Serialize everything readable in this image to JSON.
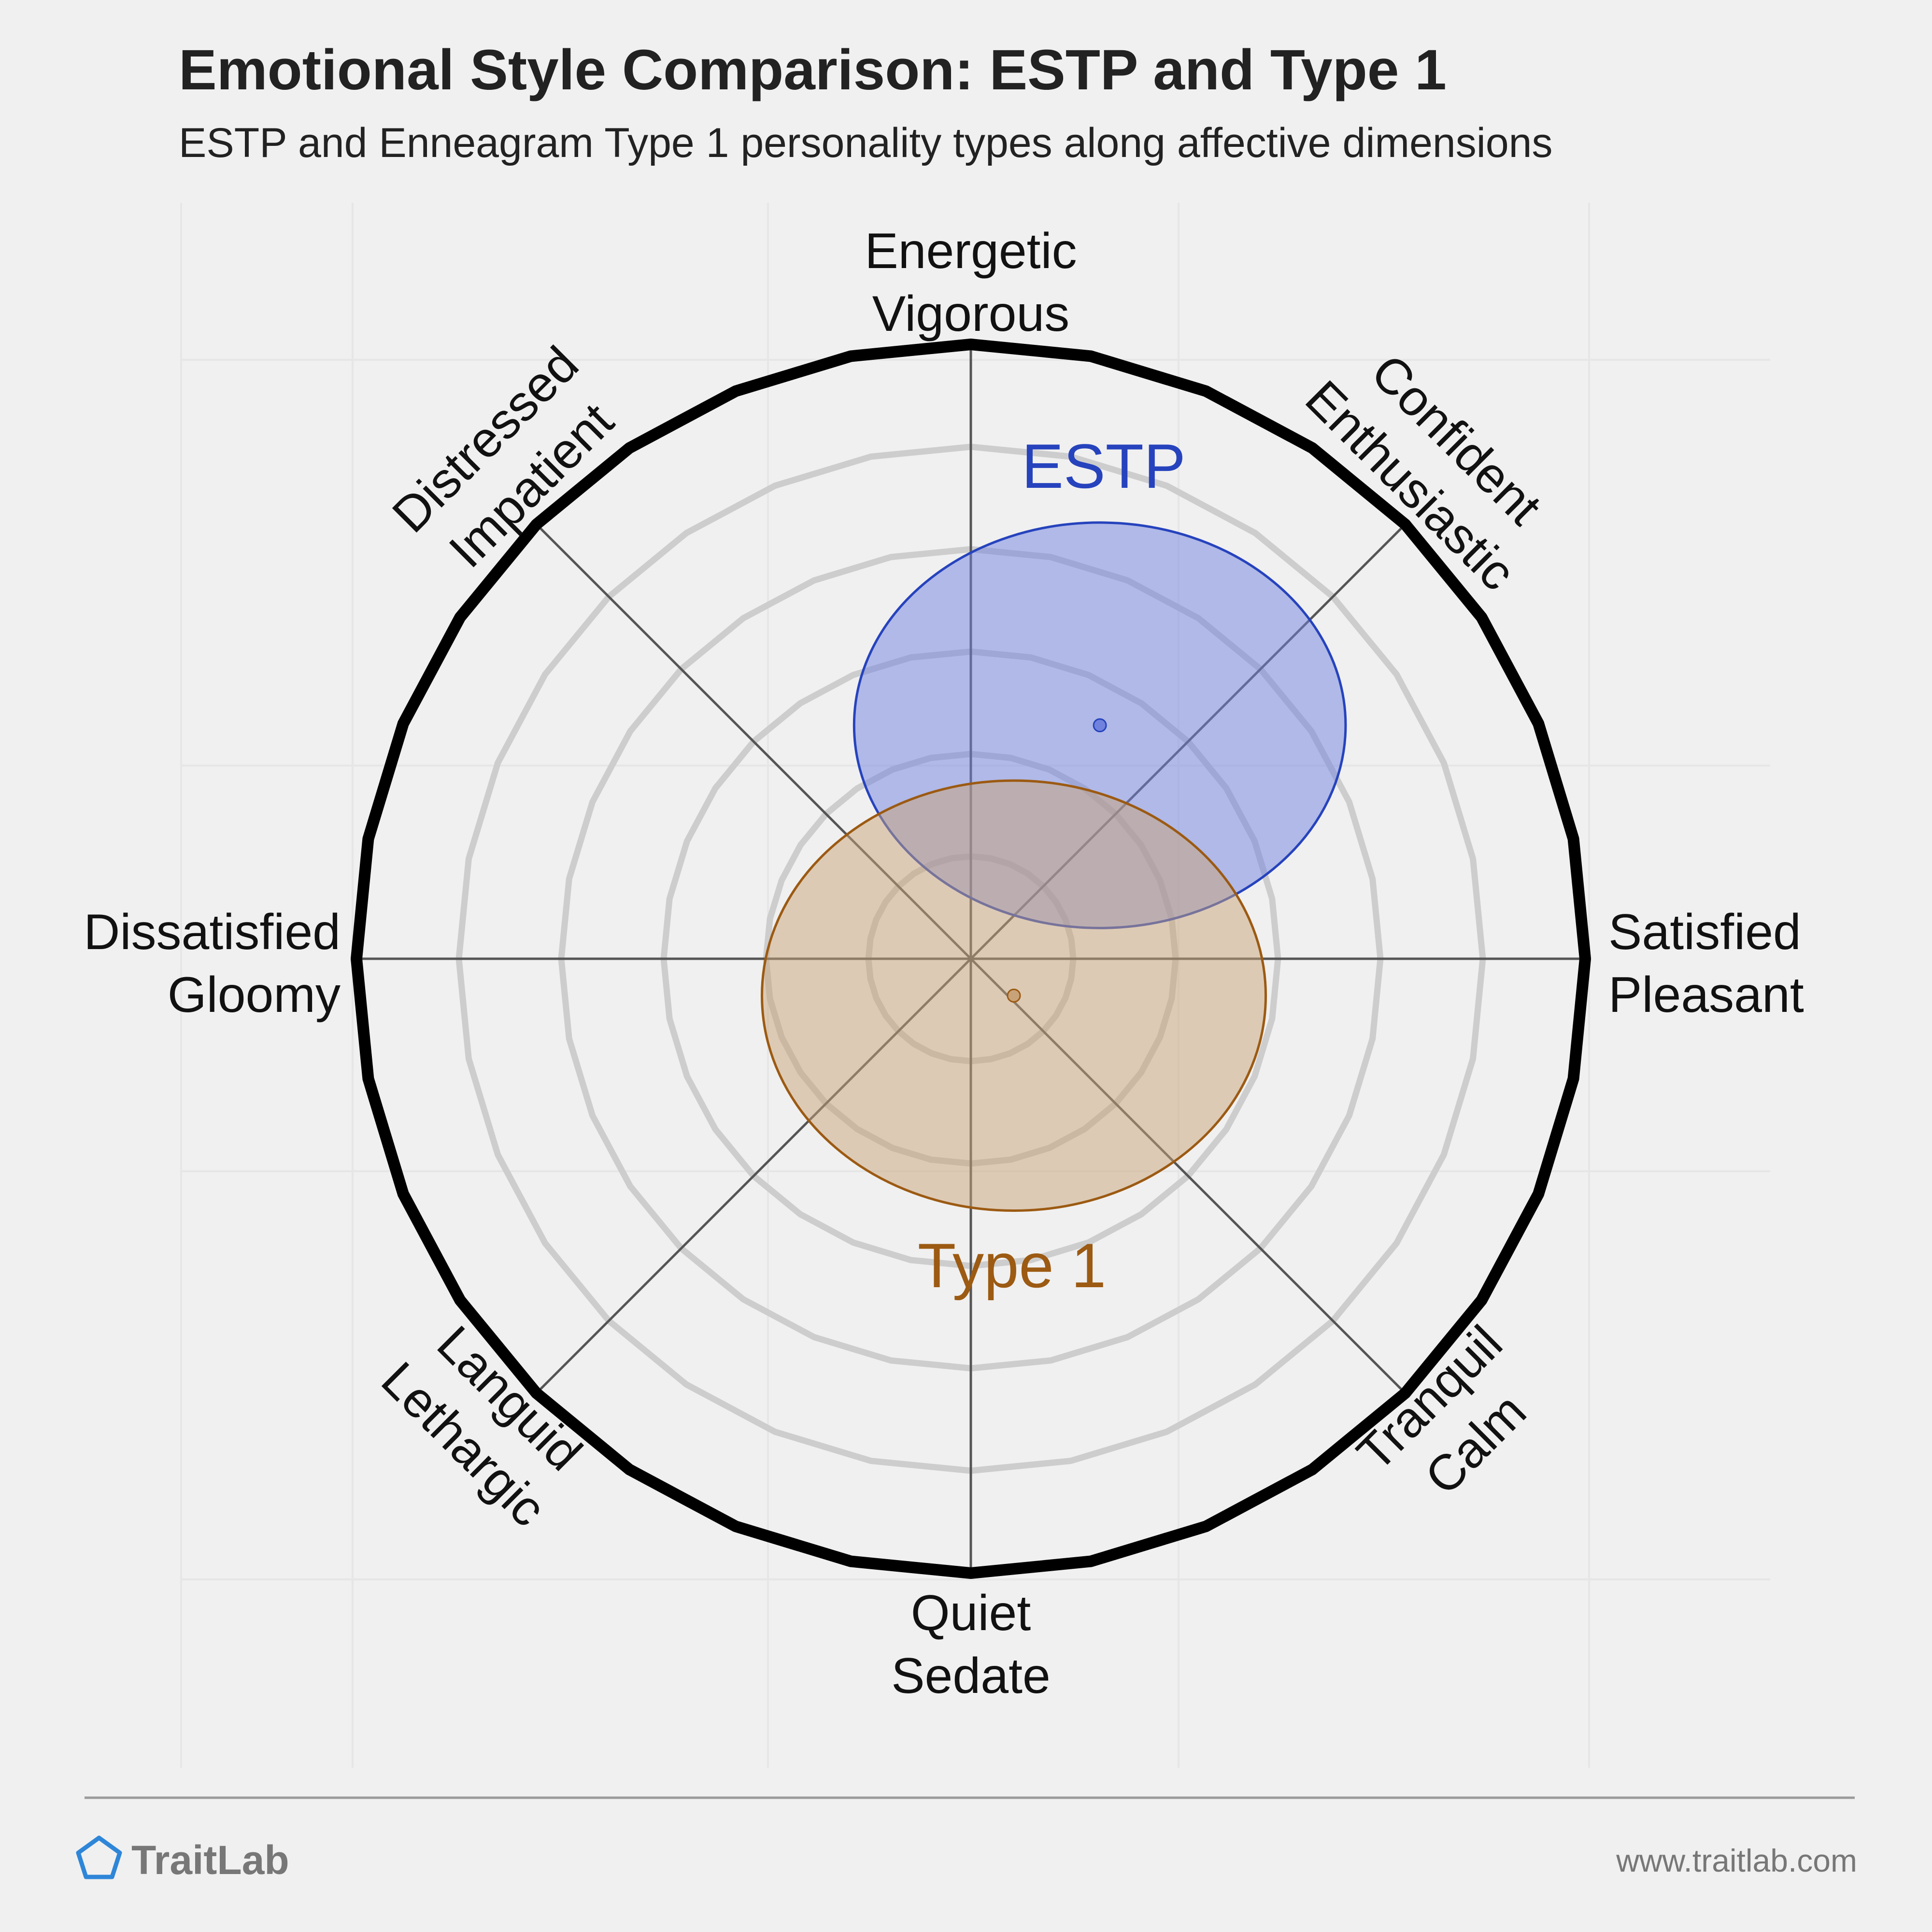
{
  "chart_data": {
    "type": "radial-scatter",
    "title": "Emotional Style Comparison: ESTP and Type 1",
    "subtitle": "ESTP and Enneagram Type 1 personality types along affective dimensions",
    "x_axis": {
      "negative": [
        "Dissatisfied",
        "Gloomy"
      ],
      "positive": [
        "Satisfied",
        "Pleasant"
      ]
    },
    "y_axis": {
      "negative": [
        "Quiet",
        "Sedate"
      ],
      "positive": [
        "Energetic",
        "Vigorous"
      ]
    },
    "diagonals": {
      "upper_right": [
        "Confident",
        "Enthusiastic"
      ],
      "upper_left": [
        "Distressed",
        "Impatient"
      ],
      "lower_left": [
        "Languid",
        "Lethargic"
      ],
      "lower_right": [
        "Tranquil",
        "Calm"
      ]
    },
    "range": [
      -1,
      1
    ],
    "rings": 6,
    "grid": true,
    "series": [
      {
        "name": "ESTP",
        "color": "#2643bd",
        "fill": "#7082dd",
        "center": [
          0.21,
          0.38
        ],
        "spread": [
          0.4,
          0.33
        ]
      },
      {
        "name": "Type 1",
        "color": "#9c5a12",
        "fill": "#c8a37a",
        "center": [
          0.07,
          -0.06
        ],
        "spread": [
          0.41,
          0.35
        ]
      }
    ]
  },
  "footer": {
    "brand": "TraitLab",
    "url": "www.traitlab.com"
  }
}
